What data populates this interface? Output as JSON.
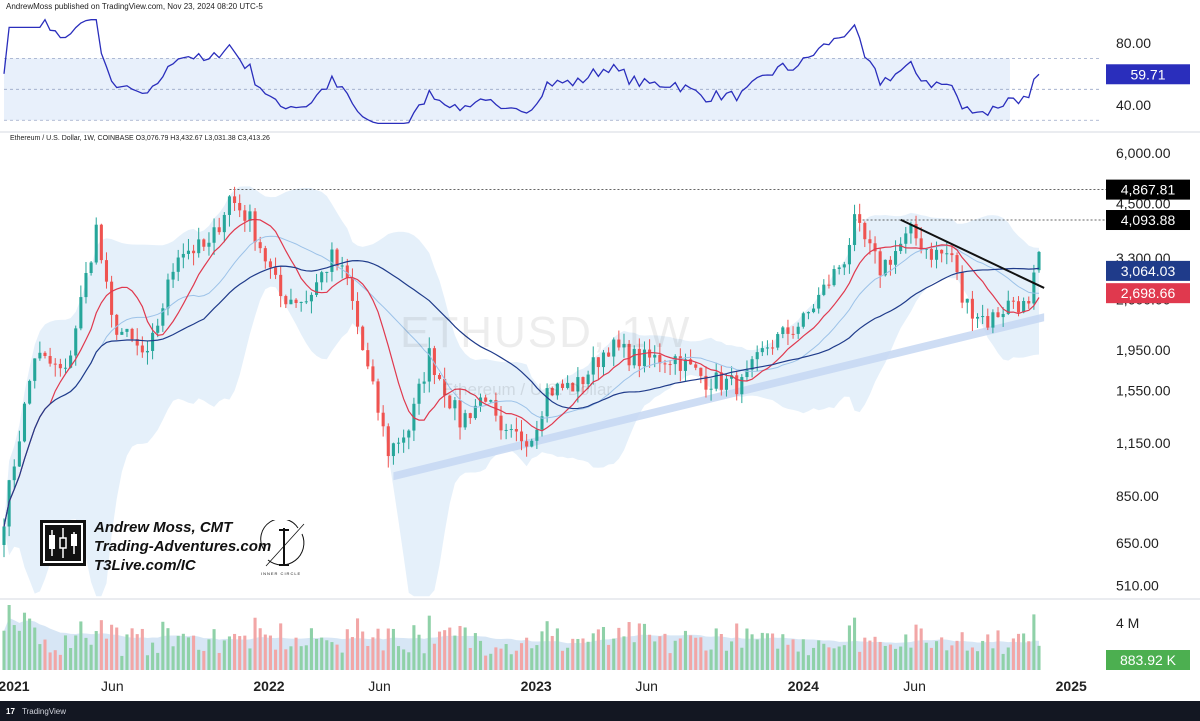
{
  "header": {
    "publisher_line": "AndrewMoss published on TradingView.com, Nov 23, 2024 08:20 UTC-5"
  },
  "symbol_line": "Ethereum / U.S. Dollar, 1W, COINBASE  O3,076.79  H3,432.67  L3,031.38  C3,413.26",
  "watermark": {
    "symbol": "ETHUSD, 1W",
    "name": "Ethereum / U.S. Dollar"
  },
  "branding": {
    "line1": "Andrew Moss, CMT",
    "line2": "Trading-Adventures.com",
    "line3": "T3Live.com/IC",
    "ic_caption": "INNER CIRCLE"
  },
  "footer": {
    "logo_text": "17",
    "label": "TradingView"
  },
  "colors": {
    "up": "#26a69a",
    "down": "#ef5350",
    "rsi": "#2a2ebc",
    "ma_fast": "#e0394e",
    "ma_slow": "#1f3b8a",
    "band_fill": "#cfe3f6",
    "support_band": "#c5d7f2",
    "volume_up": "#8fd1a8",
    "volume_down": "#f2a6a6",
    "volume_ma": "#bcd5ee"
  },
  "chart_data": {
    "type": "candlestick",
    "x": {
      "tick_labels": [
        "2021",
        "Jun",
        "2022",
        "Jun",
        "2023",
        "Jun",
        "2024",
        "Jun",
        "2025"
      ],
      "range": [
        "2021-01-04",
        "2025-01-13"
      ]
    },
    "price_axis": {
      "scale": "log",
      "tick_labels": [
        "6,000.00",
        "4,500.00",
        "3,300.00",
        "2,600.00",
        "1,950.00",
        "1,550.00",
        "1,150.00",
        "850.00",
        "650.00",
        "510.00"
      ],
      "ticks": [
        6000,
        4500,
        3300,
        2600,
        1950,
        1550,
        1150,
        850,
        650,
        510
      ],
      "range": [
        470,
        6100
      ]
    },
    "rsi_axis": {
      "tick_labels": [
        "80.00",
        "40.00"
      ],
      "ticks": [
        80,
        40
      ],
      "range": [
        25,
        98
      ]
    },
    "volume_axis": {
      "tick_labels": [
        "4 M"
      ]
    },
    "price_labels": [
      {
        "label": "4,867.81",
        "value": 4867.81,
        "color": "#000000"
      },
      {
        "label": "4,093.88",
        "value": 4093.88,
        "color": "#000000"
      },
      {
        "label": "3,064.03",
        "value": 3064.03,
        "color": "#1f3b8a"
      },
      {
        "label": "2,698.66",
        "value": 2698.66,
        "color": "#e0394e"
      }
    ],
    "rsi_label": {
      "label": "59.71",
      "value": 59.71,
      "color": "#2a2ebc"
    },
    "volume_label": {
      "label": "883.92 K",
      "value": 883920,
      "color": "#4caf50"
    },
    "ohlc_last": {
      "open": 3076.79,
      "high": 3432.67,
      "low": 3031.38,
      "close": 3413.26
    },
    "close_anchors": [
      [
        "2021-01-04",
        760
      ],
      [
        "2021-02-15",
        1900
      ],
      [
        "2021-03-29",
        1700
      ],
      [
        "2021-05-10",
        3900
      ],
      [
        "2021-05-31",
        2300
      ],
      [
        "2021-07-19",
        1850
      ],
      [
        "2021-08-30",
        3450
      ],
      [
        "2021-10-11",
        3500
      ],
      [
        "2021-11-08",
        4650
      ],
      [
        "2021-12-06",
        4100
      ],
      [
        "2022-01-17",
        2650
      ],
      [
        "2022-02-21",
        2600
      ],
      [
        "2022-03-28",
        3300
      ],
      [
        "2022-04-18",
        2900
      ],
      [
        "2022-05-09",
        1950
      ],
      [
        "2022-06-13",
        1100
      ],
      [
        "2022-07-11",
        1250
      ],
      [
        "2022-08-08",
        1900
      ],
      [
        "2022-09-19",
        1300
      ],
      [
        "2022-10-24",
        1520
      ],
      [
        "2022-11-14",
        1180
      ],
      [
        "2022-12-26",
        1200
      ],
      [
        "2023-01-16",
        1550
      ],
      [
        "2023-02-27",
        1600
      ],
      [
        "2023-04-10",
        2000
      ],
      [
        "2023-05-22",
        1850
      ],
      [
        "2023-07-10",
        1870
      ],
      [
        "2023-08-21",
        1650
      ],
      [
        "2023-10-09",
        1600
      ],
      [
        "2023-11-13",
        2000
      ],
      [
        "2024-01-01",
        2300
      ],
      [
        "2024-02-26",
        3300
      ],
      [
        "2024-03-11",
        4000
      ],
      [
        "2024-04-15",
        3100
      ],
      [
        "2024-05-27",
        3800
      ],
      [
        "2024-06-24",
        3400
      ],
      [
        "2024-07-22",
        3350
      ],
      [
        "2024-08-05",
        2600
      ],
      [
        "2024-09-09",
        2300
      ],
      [
        "2024-10-14",
        2600
      ],
      [
        "2024-11-04",
        2450
      ],
      [
        "2024-11-18",
        3413
      ]
    ],
    "trendlines": [
      {
        "name": "resistance",
        "from": [
          "2024-05-13",
          4100
        ],
        "to": [
          "2024-11-25",
          2780
        ]
      },
      {
        "name": "support",
        "from": [
          "2022-06-20",
          930
        ],
        "to": [
          "2024-11-25",
          2300
        ]
      }
    ],
    "horizontal_levels": [
      {
        "value": 4867.81,
        "from": "2021-11-08"
      },
      {
        "value": 4093.88,
        "from": "2024-03-11"
      }
    ],
    "rsi_levels": [
      70,
      50,
      30
    ]
  }
}
